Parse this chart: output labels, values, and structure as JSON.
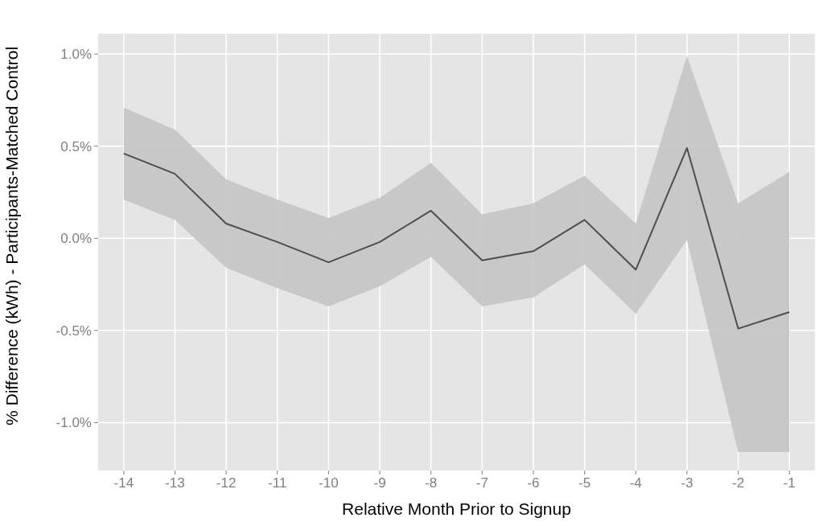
{
  "chart_data": {
    "type": "line",
    "xlabel": "Relative Month Prior to Signup",
    "ylabel": "% Difference (kWh) - Participants-Matched Control",
    "x": [
      -14,
      -13,
      -12,
      -11,
      -10,
      -9,
      -8,
      -7,
      -6,
      -5,
      -4,
      -3,
      -2,
      -1
    ],
    "series": [
      {
        "color": "#4d4d55",
        "values": [
          0.46,
          0.35,
          0.08,
          -0.02,
          -0.13,
          -0.02,
          0.15,
          -0.12,
          -0.07,
          0.1,
          -0.17,
          0.49,
          -0.49,
          -0.4
        ],
        "lower": [
          0.21,
          0.1,
          -0.16,
          -0.27,
          -0.37,
          -0.26,
          -0.1,
          -0.37,
          -0.32,
          -0.14,
          -0.41,
          -0.01,
          -1.16,
          -1.16
        ],
        "upper": [
          0.71,
          0.59,
          0.32,
          0.21,
          0.11,
          0.22,
          0.41,
          0.13,
          0.19,
          0.34,
          0.08,
          0.99,
          0.19,
          0.36
        ]
      }
    ],
    "xlim": [
      -14.5,
      -0.5
    ],
    "xticks": [
      {
        "value": -14,
        "label": "-14"
      },
      {
        "value": -13,
        "label": "-13"
      },
      {
        "value": -12,
        "label": "-12"
      },
      {
        "value": -11,
        "label": "-11"
      },
      {
        "value": -10,
        "label": "-10"
      },
      {
        "value": -9,
        "label": "-9"
      },
      {
        "value": -8,
        "label": "-8"
      },
      {
        "value": -7,
        "label": "-7"
      },
      {
        "value": -6,
        "label": "-6"
      },
      {
        "value": -5,
        "label": "-5"
      },
      {
        "value": -4,
        "label": "-4"
      },
      {
        "value": -3,
        "label": "-3"
      },
      {
        "value": -2,
        "label": "-2"
      },
      {
        "value": -1,
        "label": "-1"
      }
    ],
    "ylim": [
      -1.26,
      1.11
    ],
    "yticks": [
      {
        "value": -1,
        "label": "-1.0%"
      },
      {
        "value": -0.5,
        "label": "-0.5%"
      },
      {
        "value": 0,
        "label": "0.0%"
      },
      {
        "value": 0.5,
        "label": "0.5%"
      },
      {
        "value": 1,
        "label": "1.0%"
      }
    ],
    "grid": true,
    "marker": "none",
    "line_style": "solid"
  }
}
